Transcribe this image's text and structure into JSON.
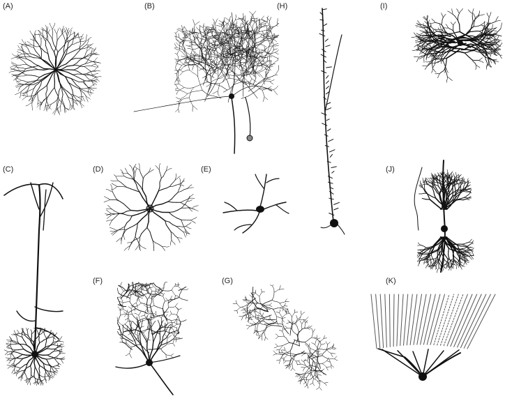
{
  "panels": {
    "A": {
      "label": "(A)"
    },
    "B": {
      "label": "(B)"
    },
    "C": {
      "label": "(C)"
    },
    "D": {
      "label": "(D)"
    },
    "E": {
      "label": "(E)"
    },
    "F": {
      "label": "(F)"
    },
    "G": {
      "label": "(G)"
    },
    "H": {
      "label": "(H)"
    },
    "I": {
      "label": "(I)"
    },
    "J": {
      "label": "(J)"
    },
    "K": {
      "label": "(K)"
    }
  }
}
